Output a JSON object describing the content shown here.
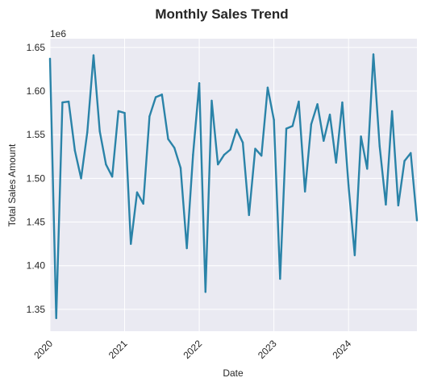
{
  "chart_data": {
    "type": "line",
    "title": "Monthly Sales Trend",
    "xlabel": "Date",
    "ylabel": "Total Sales Amount",
    "y_offset_label": "1e6",
    "y_scale": 1000000,
    "ylim": [
      1.325,
      1.66
    ],
    "xlim": [
      "2020-01",
      "2024-12"
    ],
    "yticks": [
      "1.35",
      "1.40",
      "1.45",
      "1.50",
      "1.55",
      "1.60",
      "1.65"
    ],
    "xticks": [
      "2020",
      "2021",
      "2022",
      "2023",
      "2024"
    ],
    "grid": true,
    "colors": {
      "line": "#2a83a8",
      "plot_bg": "#eaeaf2",
      "grid": "#ffffff"
    },
    "x": [
      "2020-01",
      "2020-02",
      "2020-03",
      "2020-04",
      "2020-05",
      "2020-06",
      "2020-07",
      "2020-08",
      "2020-09",
      "2020-10",
      "2020-11",
      "2020-12",
      "2021-01",
      "2021-02",
      "2021-03",
      "2021-04",
      "2021-05",
      "2021-06",
      "2021-07",
      "2021-08",
      "2021-09",
      "2021-10",
      "2021-11",
      "2021-12",
      "2022-01",
      "2022-02",
      "2022-03",
      "2022-04",
      "2022-05",
      "2022-06",
      "2022-07",
      "2022-08",
      "2022-09",
      "2022-10",
      "2022-11",
      "2022-12",
      "2023-01",
      "2023-02",
      "2023-03",
      "2023-04",
      "2023-05",
      "2023-06",
      "2023-07",
      "2023-08",
      "2023-09",
      "2023-10",
      "2023-11",
      "2023-12",
      "2024-01",
      "2024-02",
      "2024-03",
      "2024-04",
      "2024-05",
      "2024-06",
      "2024-07",
      "2024-08",
      "2024-09",
      "2024-10",
      "2024-11",
      "2024-12"
    ],
    "series": [
      {
        "values": [
          1.637,
          1.34,
          1.587,
          1.588,
          1.532,
          1.5,
          1.553,
          1.641,
          1.554,
          1.516,
          1.502,
          1.577,
          1.575,
          1.425,
          1.484,
          1.471,
          1.571,
          1.593,
          1.596,
          1.545,
          1.535,
          1.512,
          1.42,
          1.527,
          1.609,
          1.37,
          1.589,
          1.516,
          1.527,
          1.533,
          1.556,
          1.541,
          1.458,
          1.534,
          1.526,
          1.604,
          1.567,
          1.385,
          1.557,
          1.56,
          1.588,
          1.485,
          1.562,
          1.585,
          1.543,
          1.573,
          1.518,
          1.587,
          1.492,
          1.412,
          1.548,
          1.511,
          1.642,
          1.537,
          1.47,
          1.577,
          1.469,
          1.52,
          1.529,
          1.452
        ]
      }
    ]
  }
}
